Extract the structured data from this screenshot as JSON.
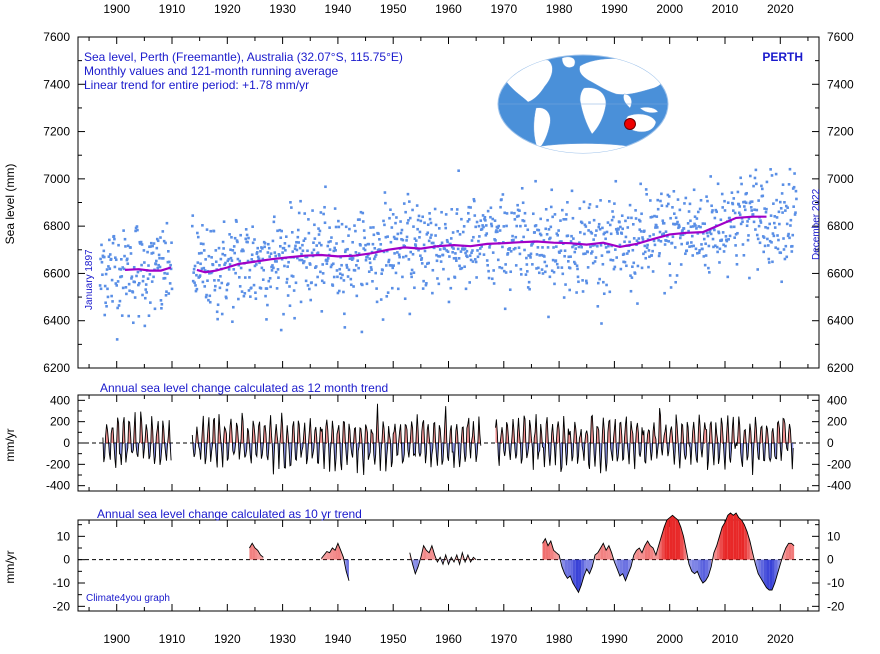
{
  "header": {
    "line1": "Sea level, Perth (Freemantle), Australia (32.07°S, 115.75°E)",
    "line2": "Monthly values and 121-month running average",
    "line3": "Linear trend for entire period: +1.78 mm/yr",
    "station": "PERTH",
    "start_label": "January 1897",
    "end_label": "December 2022",
    "credit": "Climate4you graph"
  },
  "colors": {
    "points": "#5a8fe6",
    "running_mean": "#a000c8",
    "positive": "#e83030",
    "negative": "#2030d0",
    "label_blue": "#1a1acc",
    "ocean": "#4a90d9",
    "land": "#ffffff",
    "marker": "#ee0000"
  },
  "icons": {
    "world_map": "globe-map-icon",
    "station_marker": "red-dot-icon"
  },
  "chart_data": [
    {
      "id": "sea_level",
      "type": "scatter",
      "title": "",
      "ylabel": "Sea level (mm)",
      "xlim": [
        1893,
        2027
      ],
      "ylim": [
        6200,
        7600
      ],
      "yticks": [
        6200,
        6400,
        6600,
        6800,
        7000,
        7200,
        7400,
        7600
      ],
      "xticks": [
        1900,
        1910,
        1920,
        1930,
        1940,
        1950,
        1960,
        1970,
        1980,
        1990,
        2000,
        2010,
        2020
      ],
      "gaps": [
        [
          1910.0,
          1913.6
        ]
      ],
      "data_range": [
        1897.0,
        2022.99
      ],
      "running_mean": {
        "x": [
          1901.5,
          1904,
          1906,
          1908,
          1909.8,
          1914.5,
          1916,
          1918,
          1920,
          1922,
          1925,
          1928,
          1931,
          1934,
          1937,
          1940,
          1943,
          1946,
          1949,
          1952,
          1955,
          1958,
          1961,
          1964,
          1967,
          1970,
          1973,
          1976,
          1979,
          1982,
          1985,
          1988,
          1991,
          1994,
          1997,
          2000,
          2003,
          2006,
          2009,
          2012,
          2015,
          2017.5
        ],
        "y": [
          6615,
          6618,
          6612,
          6612,
          6625,
          6615,
          6605,
          6612,
          6625,
          6640,
          6650,
          6660,
          6668,
          6675,
          6678,
          6672,
          6675,
          6685,
          6700,
          6710,
          6705,
          6715,
          6720,
          6715,
          6725,
          6728,
          6732,
          6735,
          6730,
          6728,
          6722,
          6730,
          6712,
          6725,
          6745,
          6765,
          6772,
          6775,
          6805,
          6835,
          6840,
          6840
        ]
      },
      "points_trend": {
        "x": [
          1897,
          1923,
          1950,
          1977,
          2000,
          2010,
          2023
        ],
        "y": [
          6620,
          6630,
          6700,
          6730,
          6770,
          6810,
          6860
        ]
      }
    },
    {
      "id": "change_12m",
      "type": "area",
      "title": "Annual sea level change calculated as 12 month trend",
      "ylabel": "mm/yr",
      "ylim": [
        -500,
        450
      ],
      "yticks": [
        -400,
        -200,
        0,
        200,
        400
      ],
      "gaps": [
        [
          1910.0,
          1913.6
        ],
        [
          1966,
          1968.5
        ]
      ],
      "data_range": [
        1897.5,
        2022.5
      ]
    },
    {
      "id": "change_10y",
      "type": "area",
      "title": "Annual sea level change calculated as 10 yr trend",
      "ylabel": "mm/yr",
      "ylim": [
        -22,
        17
      ],
      "yticks": [
        -20,
        -10,
        0,
        10
      ],
      "segments": [
        {
          "x": [
            1924.0,
            1924.5,
            1925.0,
            1925.5,
            1926.0,
            1926.5
          ],
          "y": [
            5,
            7,
            5,
            4,
            2,
            1
          ]
        },
        {
          "x": [
            1937.0,
            1937.5,
            1938.0,
            1938.5,
            1939.0,
            1939.5,
            1940.0,
            1940.5,
            1941.0,
            1941.5,
            1942.0
          ],
          "y": [
            0.5,
            2,
            3.5,
            3,
            5,
            4,
            7,
            4,
            1,
            -5,
            -9
          ]
        },
        {
          "x": [
            1953.0,
            1953.5,
            1954.0,
            1954.5,
            1955.0,
            1955.5,
            1956.0,
            1956.5,
            1957.0,
            1957.5,
            1958.0,
            1958.5,
            1959.0,
            1959.5,
            1960.0,
            1960.5,
            1961.0,
            1961.5,
            1962.0,
            1962.5,
            1963.0,
            1963.5,
            1964.0,
            1964.5,
            1965.0
          ],
          "y": [
            3,
            -2,
            -6,
            -3,
            1,
            6,
            4,
            3,
            6,
            2,
            -1,
            1,
            -2,
            2,
            -2,
            1,
            -1,
            2,
            -2,
            3,
            -1,
            2,
            -1,
            1,
            0
          ]
        },
        {
          "x": [
            1977.0,
            1977.5,
            1978.0,
            1978.5,
            1979.0,
            1979.5,
            1980.0,
            1980.5,
            1981.0,
            1981.5,
            1982.0,
            1982.5,
            1983.0,
            1983.5,
            1984.0,
            1984.5,
            1985.0,
            1985.5,
            1986.0,
            1986.5,
            1987.0,
            1987.5,
            1988.0,
            1988.5,
            1989.0,
            1989.5,
            1990.0,
            1990.5,
            1991.0,
            1991.5,
            1992.0,
            1992.5,
            1993.0,
            1993.5,
            1994.0,
            1994.5,
            1995.0,
            1995.5,
            1996.0,
            1996.5,
            1997.0,
            1997.5,
            1998.0,
            1998.5,
            1999.0,
            1999.5,
            2000.0,
            2000.5,
            2001.0,
            2001.5,
            2002.0,
            2002.5,
            2003.0,
            2003.5,
            2004.0,
            2004.5,
            2005.0,
            2005.5,
            2006.0,
            2006.5,
            2007.0,
            2007.5,
            2008.0,
            2008.5,
            2009.0,
            2009.5,
            2010.0,
            2010.5,
            2011.0,
            2011.5,
            2012.0,
            2012.5,
            2013.0,
            2013.5,
            2014.0,
            2014.5,
            2015.0,
            2015.5,
            2016.0,
            2016.5,
            2017.0,
            2017.5,
            2018.0,
            2018.5,
            2019.0,
            2019.5,
            2020.0,
            2020.5,
            2021.0,
            2021.5,
            2022.0,
            2022.5
          ],
          "y": [
            7,
            9,
            6,
            8,
            4,
            3,
            2,
            -3,
            -6,
            -8,
            -7,
            -10,
            -12,
            -14,
            -11,
            -7,
            -4,
            -6,
            -3,
            2,
            3,
            5,
            7,
            4,
            6,
            3,
            -1,
            -4,
            -7,
            -6,
            -9,
            -6,
            -3,
            2,
            4,
            5,
            3,
            6,
            8,
            6,
            5,
            2,
            6,
            10,
            14,
            17,
            18,
            19,
            18,
            17,
            14,
            10,
            4,
            -2,
            -5,
            -6,
            -5,
            -8,
            -10,
            -9,
            -7,
            -3,
            3,
            6,
            10,
            14,
            16,
            19,
            20,
            19,
            20,
            18,
            17,
            15,
            12,
            8,
            3,
            -2,
            -6,
            -8,
            -10,
            -12,
            -13,
            -13,
            -10,
            -6,
            -2,
            2,
            5,
            7,
            7,
            6
          ]
        }
      ]
    }
  ],
  "axis_top_ticks": [
    1900,
    1910,
    1920,
    1930,
    1940,
    1950,
    1960,
    1970,
    1980,
    1990,
    2000,
    2010,
    2020
  ]
}
